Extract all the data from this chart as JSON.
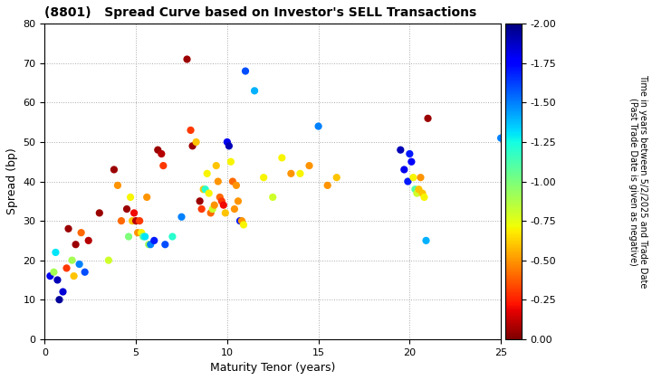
{
  "title": "(8801)   Spread Curve based on Investor's SELL Transactions",
  "xlabel": "Maturity Tenor (years)",
  "ylabel": "Spread (bp)",
  "colorbar_label": "Time in years between 5/2/2025 and Trade Date\n(Past Trade Date is given as negative)",
  "xlim": [
    0,
    25
  ],
  "ylim": [
    0,
    80
  ],
  "xticks": [
    0,
    5,
    10,
    15,
    20,
    25
  ],
  "yticks": [
    0,
    10,
    20,
    30,
    40,
    50,
    60,
    70,
    80
  ],
  "cmap": "jet",
  "vmin": -2.0,
  "vmax": 0.0,
  "colorbar_ticks": [
    0.0,
    -0.25,
    -0.5,
    -0.75,
    -1.0,
    -1.25,
    -1.5,
    -1.75,
    -2.0
  ],
  "points": [
    [
      0.3,
      16,
      -1.8
    ],
    [
      0.5,
      17,
      -0.9
    ],
    [
      0.6,
      22,
      -1.3
    ],
    [
      0.7,
      15,
      -1.9
    ],
    [
      0.8,
      10,
      -1.95
    ],
    [
      1.0,
      12,
      -1.85
    ],
    [
      1.2,
      18,
      -0.3
    ],
    [
      1.3,
      28,
      -0.05
    ],
    [
      1.5,
      20,
      -0.9
    ],
    [
      1.6,
      16,
      -0.6
    ],
    [
      1.7,
      24,
      -0.05
    ],
    [
      1.9,
      19,
      -1.5
    ],
    [
      2.0,
      27,
      -0.4
    ],
    [
      2.2,
      17,
      -1.6
    ],
    [
      2.4,
      25,
      -0.1
    ],
    [
      3.0,
      32,
      -0.05
    ],
    [
      3.5,
      20,
      -0.8
    ],
    [
      3.8,
      43,
      -0.05
    ],
    [
      4.0,
      39,
      -0.5
    ],
    [
      4.2,
      30,
      -0.4
    ],
    [
      4.5,
      33,
      -0.05
    ],
    [
      4.6,
      26,
      -1.0
    ],
    [
      4.7,
      36,
      -0.7
    ],
    [
      4.8,
      30,
      -0.6
    ],
    [
      4.9,
      32,
      -0.2
    ],
    [
      5.0,
      30,
      -0.1
    ],
    [
      5.1,
      27,
      -0.5
    ],
    [
      5.2,
      30,
      -0.3
    ],
    [
      5.3,
      27,
      -0.7
    ],
    [
      5.4,
      26,
      -1.1
    ],
    [
      5.5,
      26,
      -1.3
    ],
    [
      5.6,
      36,
      -0.5
    ],
    [
      5.7,
      24,
      -0.9
    ],
    [
      5.8,
      24,
      -1.5
    ],
    [
      6.0,
      25,
      -1.7
    ],
    [
      6.2,
      48,
      -0.05
    ],
    [
      6.4,
      47,
      -0.1
    ],
    [
      6.5,
      44,
      -0.3
    ],
    [
      6.6,
      24,
      -1.6
    ],
    [
      7.0,
      26,
      -1.2
    ],
    [
      7.5,
      31,
      -1.5
    ],
    [
      7.8,
      71,
      -0.05
    ],
    [
      8.0,
      53,
      -0.3
    ],
    [
      8.1,
      49,
      -0.05
    ],
    [
      8.3,
      50,
      -0.6
    ],
    [
      8.5,
      35,
      -0.05
    ],
    [
      8.6,
      33,
      -0.3
    ],
    [
      8.7,
      38,
      -0.6
    ],
    [
      8.8,
      38,
      -1.2
    ],
    [
      8.9,
      42,
      -0.7
    ],
    [
      9.0,
      37,
      -0.7
    ],
    [
      9.1,
      32,
      -0.4
    ],
    [
      9.2,
      33,
      -0.8
    ],
    [
      9.3,
      34,
      -0.5
    ],
    [
      9.4,
      44,
      -0.6
    ],
    [
      9.5,
      40,
      -0.5
    ],
    [
      9.6,
      36,
      -0.4
    ],
    [
      9.7,
      35,
      -0.3
    ],
    [
      9.8,
      34,
      -0.2
    ],
    [
      9.9,
      32,
      -0.6
    ],
    [
      10.0,
      50,
      -1.8
    ],
    [
      10.1,
      49,
      -1.9
    ],
    [
      10.2,
      45,
      -0.7
    ],
    [
      10.3,
      40,
      -0.4
    ],
    [
      10.4,
      33,
      -0.5
    ],
    [
      10.5,
      39,
      -0.5
    ],
    [
      10.6,
      35,
      -0.5
    ],
    [
      10.7,
      30,
      -1.7
    ],
    [
      10.8,
      30,
      -0.5
    ],
    [
      10.9,
      29,
      -0.7
    ],
    [
      11.0,
      68,
      -1.6
    ],
    [
      11.5,
      63,
      -1.4
    ],
    [
      12.0,
      41,
      -0.7
    ],
    [
      12.5,
      36,
      -0.8
    ],
    [
      13.0,
      46,
      -0.7
    ],
    [
      13.5,
      42,
      -0.5
    ],
    [
      14.0,
      42,
      -0.7
    ],
    [
      14.5,
      44,
      -0.5
    ],
    [
      15.0,
      54,
      -1.5
    ],
    [
      15.5,
      39,
      -0.5
    ],
    [
      16.0,
      41,
      -0.6
    ],
    [
      19.5,
      48,
      -1.9
    ],
    [
      19.7,
      43,
      -1.8
    ],
    [
      19.9,
      40,
      -1.7
    ],
    [
      20.0,
      47,
      -1.7
    ],
    [
      20.1,
      45,
      -1.75
    ],
    [
      20.2,
      41,
      -0.7
    ],
    [
      20.3,
      38,
      -1.1
    ],
    [
      20.4,
      37,
      -0.8
    ],
    [
      20.5,
      38,
      -0.6
    ],
    [
      20.6,
      41,
      -0.5
    ],
    [
      20.7,
      37,
      -0.6
    ],
    [
      20.8,
      36,
      -0.7
    ],
    [
      20.9,
      25,
      -1.4
    ],
    [
      21.0,
      56,
      -0.05
    ],
    [
      25.0,
      51,
      -1.5
    ]
  ],
  "background_color": "#ffffff",
  "grid_color": "#aaaaaa",
  "marker_size": 35,
  "figsize": [
    7.2,
    4.2
  ],
  "dpi": 100
}
